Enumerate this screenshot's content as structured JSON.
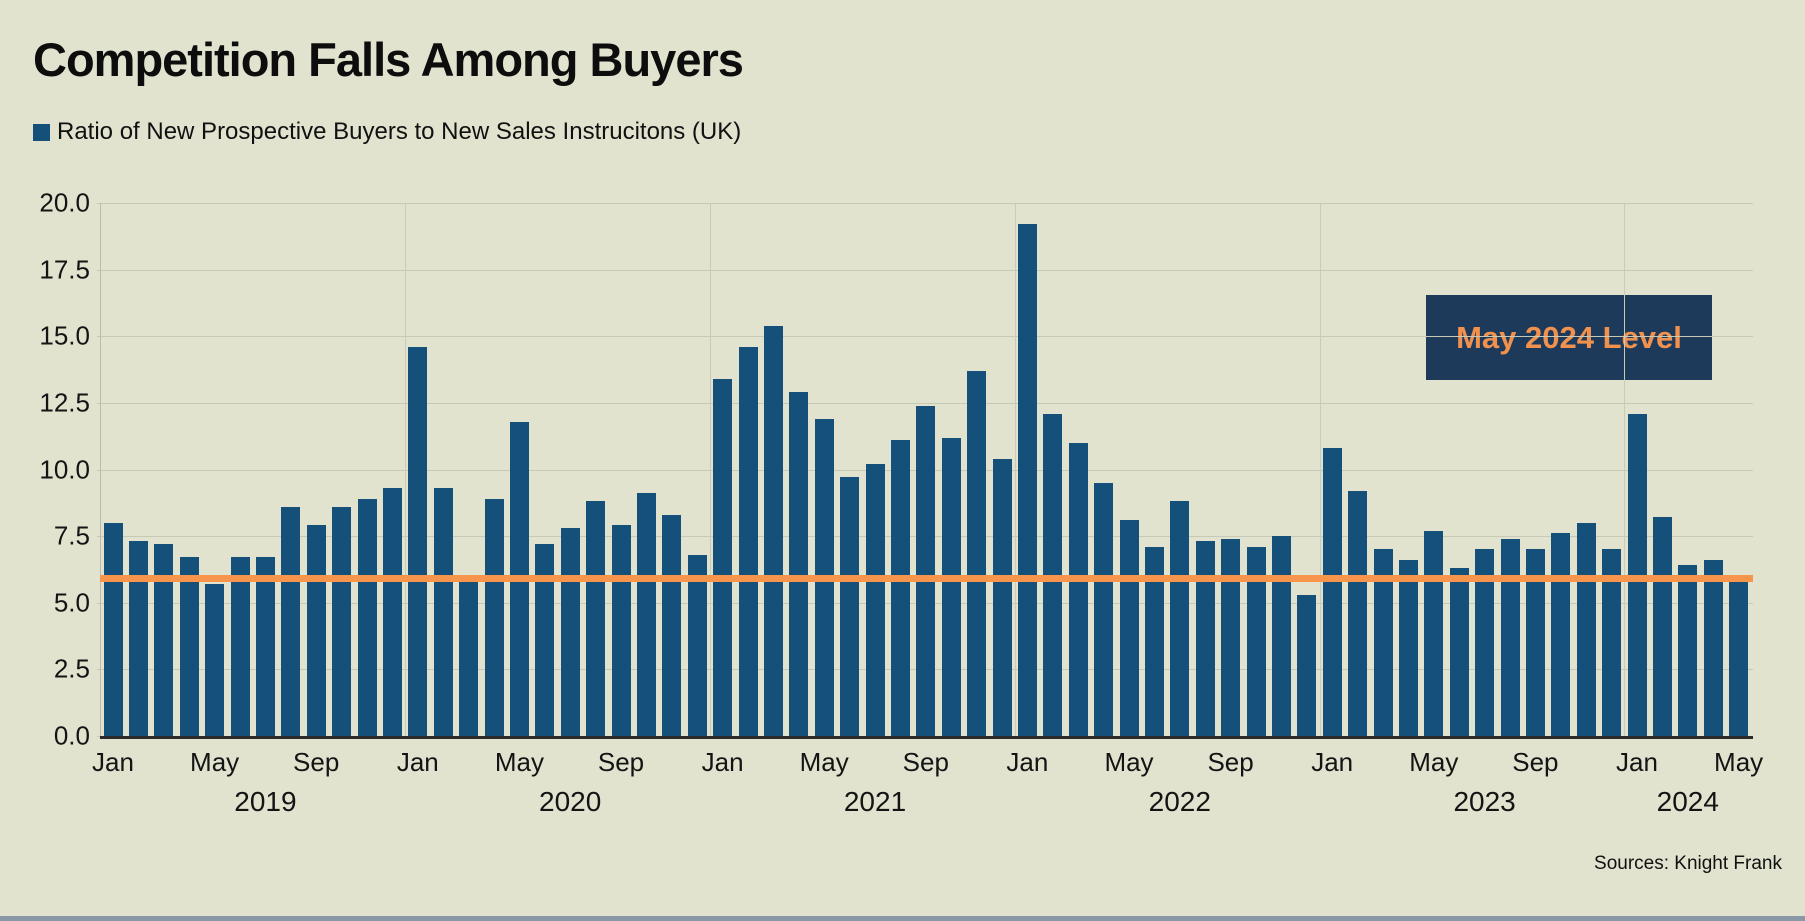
{
  "title": "Competition Falls Among Buyers",
  "legend": {
    "label": "Ratio of New Prospective Buyers to New Sales Instrucitons (UK)"
  },
  "annotation_box": {
    "label": "May 2024 Level"
  },
  "source": "Sources: Knight Frank",
  "colors": {
    "background": "#e1e3ce",
    "bar": "#15507b",
    "reference_line": "#f6954b",
    "annotation_box_bg": "#1e3a5a",
    "annotation_box_text": "#f0914e",
    "axis_text": "#141414",
    "gridline": "#c6c9b5",
    "year_gridline": "#caccb8",
    "left_spine": "#b9bcaa",
    "x_axis_line": "#2b2b2b",
    "bottom_strip": "#8a97a4"
  },
  "chart_data": {
    "type": "bar",
    "title": "Competition Falls Among Buyers",
    "series_name": "Ratio of New Prospective Buyers to New Sales Instrucitons (UK)",
    "xlabel": "",
    "ylabel": "",
    "ylim": [
      0,
      20
    ],
    "grid": true,
    "legend_position": "top-left",
    "yticks": [
      "20.0",
      "17.5",
      "15.0",
      "12.5",
      "10.0",
      "7.5",
      "5.0",
      "2.5",
      "0.0"
    ],
    "ytick_values": [
      20.0,
      17.5,
      15.0,
      12.5,
      10.0,
      7.5,
      5.0,
      2.5,
      0.0
    ],
    "categories": [
      "Jan 2019",
      "Feb 2019",
      "Mar 2019",
      "Apr 2019",
      "May 2019",
      "Jun 2019",
      "Jul 2019",
      "Aug 2019",
      "Sep 2019",
      "Oct 2019",
      "Nov 2019",
      "Dec 2019",
      "Jan 2020",
      "Feb 2020",
      "Mar 2020",
      "Apr 2020",
      "May 2020",
      "Jun 2020",
      "Jul 2020",
      "Aug 2020",
      "Sep 2020",
      "Oct 2020",
      "Nov 2020",
      "Dec 2020",
      "Jan 2021",
      "Feb 2021",
      "Mar 2021",
      "Apr 2021",
      "May 2021",
      "Jun 2021",
      "Jul 2021",
      "Aug 2021",
      "Sep 2021",
      "Oct 2021",
      "Nov 2021",
      "Dec 2021",
      "Jan 2022",
      "Feb 2022",
      "Mar 2022",
      "Apr 2022",
      "May 2022",
      "Jun 2022",
      "Jul 2022",
      "Aug 2022",
      "Sep 2022",
      "Oct 2022",
      "Nov 2022",
      "Dec 2022",
      "Jan 2023",
      "Feb 2023",
      "Mar 2023",
      "Apr 2023",
      "May 2023",
      "Jun 2023",
      "Jul 2023",
      "Aug 2023",
      "Sep 2023",
      "Oct 2023",
      "Nov 2023",
      "Dec 2023",
      "Jan 2024",
      "Feb 2024",
      "Mar 2024",
      "Apr 2024",
      "May 2024"
    ],
    "values": [
      8.0,
      7.3,
      7.2,
      6.7,
      5.7,
      6.7,
      6.7,
      8.6,
      7.9,
      8.6,
      8.9,
      9.3,
      14.6,
      9.3,
      5.9,
      8.9,
      11.8,
      7.2,
      7.8,
      8.8,
      7.9,
      9.1,
      8.3,
      6.8,
      13.4,
      14.6,
      15.4,
      12.9,
      11.9,
      9.7,
      10.2,
      11.1,
      12.4,
      11.2,
      13.7,
      10.4,
      19.2,
      12.1,
      11.0,
      9.5,
      8.1,
      7.1,
      8.8,
      7.3,
      7.4,
      7.1,
      7.5,
      5.3,
      10.8,
      9.2,
      7.0,
      6.6,
      7.7,
      6.3,
      7.0,
      7.4,
      7.0,
      7.6,
      8.0,
      7.0,
      12.1,
      8.2,
      6.4,
      6.6,
      5.9
    ],
    "xticks": [
      {
        "index": 0,
        "label": "Jan"
      },
      {
        "index": 4,
        "label": "May"
      },
      {
        "index": 8,
        "label": "Sep"
      },
      {
        "index": 12,
        "label": "Jan"
      },
      {
        "index": 16,
        "label": "May"
      },
      {
        "index": 20,
        "label": "Sep"
      },
      {
        "index": 24,
        "label": "Jan"
      },
      {
        "index": 28,
        "label": "May"
      },
      {
        "index": 32,
        "label": "Sep"
      },
      {
        "index": 36,
        "label": "Jan"
      },
      {
        "index": 40,
        "label": "May"
      },
      {
        "index": 44,
        "label": "Sep"
      },
      {
        "index": 48,
        "label": "Jan"
      },
      {
        "index": 52,
        "label": "May"
      },
      {
        "index": 56,
        "label": "Sep"
      },
      {
        "index": 60,
        "label": "Jan"
      },
      {
        "index": 64,
        "label": "May"
      }
    ],
    "year_labels": [
      {
        "index": 6,
        "label": "2019"
      },
      {
        "index": 18,
        "label": "2020"
      },
      {
        "index": 30,
        "label": "2021"
      },
      {
        "index": 42,
        "label": "2022"
      },
      {
        "index": 54,
        "label": "2023"
      },
      {
        "index": 62,
        "label": "2024"
      }
    ],
    "year_boundary_indices": [
      12,
      24,
      36,
      48,
      60
    ],
    "reference_line": {
      "label": "May 2024 Level",
      "value": 5.9
    }
  }
}
